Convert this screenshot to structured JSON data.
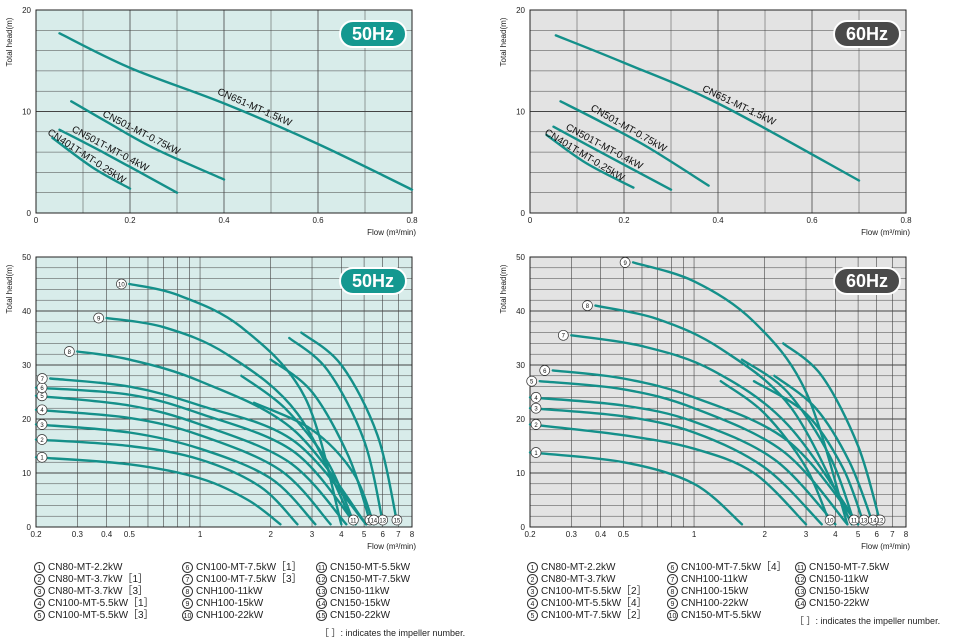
{
  "chart_data": [
    {
      "id": "top-50",
      "type": "line",
      "freq_badge": "50Hz",
      "badge_color": "#149890",
      "bg_color": "#d8ecea",
      "line_color": "#14908a",
      "xlabel": "Flow (m³/min)",
      "ylabel": "Total head(m)",
      "xscale": "linear",
      "xlim": [
        0,
        0.8
      ],
      "ylim": [
        0,
        20
      ],
      "xticks": [
        "0",
        "0.2",
        "0.4",
        "0.6",
        "0.8"
      ],
      "yticks": [
        "0",
        "10",
        "20"
      ],
      "series": [
        {
          "name": "CN651-MT-1.5kW",
          "x": [
            0.05,
            0.2,
            0.4,
            0.6,
            0.8
          ],
          "y": [
            17.7,
            14.3,
            10.8,
            6.8,
            2.3
          ]
        },
        {
          "name": "CN501-MT-0.75kW",
          "x": [
            0.075,
            0.15,
            0.25,
            0.4
          ],
          "y": [
            11.0,
            9.0,
            6.4,
            3.3
          ]
        },
        {
          "name": "CN501T-MT-0.4kW",
          "x": [
            0.05,
            0.15,
            0.3
          ],
          "y": [
            8.2,
            5.8,
            2.0
          ]
        },
        {
          "name": "CN401T-MT-0.25kW",
          "x": [
            0.035,
            0.12,
            0.2
          ],
          "y": [
            7.4,
            4.5,
            2.4
          ]
        }
      ]
    },
    {
      "id": "top-60",
      "type": "line",
      "freq_badge": "60Hz",
      "badge_color": "#4a4a4a",
      "bg_color": "#e3e3e3",
      "line_color": "#14908a",
      "xlabel": "Flow (m³/min)",
      "ylabel": "Total head(m)",
      "xscale": "linear",
      "xlim": [
        0,
        0.8
      ],
      "ylim": [
        0,
        20
      ],
      "xticks": [
        "0",
        "0.2",
        "0.4",
        "0.6",
        "0.8"
      ],
      "yticks": [
        "0",
        "10",
        "20"
      ],
      "series": [
        {
          "name": "CN651-MT-1.5kW",
          "x": [
            0.055,
            0.2,
            0.4,
            0.7
          ],
          "y": [
            17.5,
            14.8,
            10.8,
            3.2
          ]
        },
        {
          "name": "CN501-MT-0.75kW",
          "x": [
            0.065,
            0.15,
            0.25,
            0.38
          ],
          "y": [
            11.0,
            9.0,
            6.5,
            2.7
          ]
        },
        {
          "name": "CN501T-MT-0.4kW",
          "x": [
            0.05,
            0.15,
            0.3
          ],
          "y": [
            8.5,
            6.0,
            2.3
          ]
        },
        {
          "name": "CN401T-MT-0.25kW",
          "x": [
            0.035,
            0.12,
            0.22
          ],
          "y": [
            7.7,
            4.9,
            2.5
          ]
        }
      ]
    },
    {
      "id": "bottom-50",
      "type": "line",
      "freq_badge": "50Hz",
      "badge_color": "#149890",
      "bg_color": "#d8ecea",
      "line_color": "#14908a",
      "xlabel": "Flow (m³/min)",
      "ylabel": "Total head(m)",
      "xscale": "log",
      "xlim": [
        0.2,
        8
      ],
      "ylim": [
        0,
        50
      ],
      "xticks": [
        "0.2",
        "0.3",
        "0.4",
        "0.5",
        "1",
        "2",
        "3",
        "4",
        "5",
        "6",
        "7",
        "8"
      ],
      "xtick_values": [
        0.2,
        0.3,
        0.4,
        0.5,
        1,
        2,
        3,
        4,
        5,
        6,
        7,
        8
      ],
      "yticks": [
        "0",
        "10",
        "20",
        "30",
        "40",
        "50"
      ],
      "series": [
        {
          "name": "1",
          "x": [
            0.2,
            0.5,
            1,
            1.6,
            2.2
          ],
          "y": [
            12.9,
            11.6,
            9.0,
            5.0,
            0.5
          ]
        },
        {
          "name": "2",
          "x": [
            0.2,
            0.5,
            1,
            1.8,
            2.6
          ],
          "y": [
            16.2,
            15.0,
            12.5,
            7.5,
            0.5
          ]
        },
        {
          "name": "3",
          "x": [
            0.2,
            0.5,
            1,
            2,
            3.1
          ],
          "y": [
            19.0,
            17.5,
            14.5,
            9.0,
            0.5
          ]
        },
        {
          "name": "4",
          "x": [
            0.2,
            0.5,
            1,
            2.2,
            3.6
          ],
          "y": [
            21.7,
            20.2,
            17.0,
            10.5,
            0.5
          ]
        },
        {
          "name": "5",
          "x": [
            0.2,
            0.5,
            1,
            2.4,
            4.2
          ],
          "y": [
            24.3,
            22.5,
            19.0,
            12.0,
            0.5
          ]
        },
        {
          "name": "6",
          "x": [
            0.2,
            0.5,
            1,
            2.5,
            4.6
          ],
          "y": [
            25.8,
            24.5,
            21.0,
            14.0,
            0.5
          ]
        },
        {
          "name": "7",
          "x": [
            0.23,
            0.5,
            1,
            2.5,
            5.1
          ],
          "y": [
            27.5,
            26.0,
            22.5,
            16.0,
            0.5
          ]
        },
        {
          "name": "8",
          "x": [
            0.3,
            0.5,
            1,
            2.5,
            5.1
          ],
          "y": [
            32.5,
            31.0,
            27.0,
            18.0,
            0.5
          ]
        },
        {
          "name": "9",
          "x": [
            0.4,
            0.7,
            1.3,
            2.6,
            4.5
          ],
          "y": [
            38.7,
            37.0,
            32.0,
            21.0,
            0.5
          ]
        },
        {
          "name": "10",
          "x": [
            0.5,
            0.8,
            1.5,
            2.8,
            4.0
          ],
          "y": [
            45.0,
            43.0,
            37.0,
            24.0,
            0.5
          ]
        },
        {
          "name": "11",
          "x": [
            1.5,
            2.3,
            3.5,
            4.5
          ],
          "y": [
            28.0,
            22.0,
            12.0,
            1.0
          ]
        },
        {
          "name": "12",
          "x": [
            2.0,
            3.0,
            4.3,
            5.3
          ],
          "y": [
            31.0,
            25.0,
            13.0,
            1.0
          ]
        },
        {
          "name": "13",
          "x": [
            2.4,
            3.5,
            5.0,
            6.0
          ],
          "y": [
            35.0,
            29.0,
            16.0,
            1.0
          ]
        },
        {
          "name": "14",
          "x": [
            1.7,
            3.0,
            4.5,
            5.5
          ],
          "y": [
            23.0,
            18.0,
            10.0,
            0.5
          ]
        },
        {
          "name": "15",
          "x": [
            2.7,
            4.0,
            5.7,
            6.9
          ],
          "y": [
            36.0,
            30.0,
            17.0,
            1.0
          ]
        }
      ],
      "endpoint_labels": [
        "11",
        "12",
        "13",
        "14",
        "15"
      ]
    },
    {
      "id": "bottom-60",
      "type": "line",
      "freq_badge": "60Hz",
      "badge_color": "#4a4a4a",
      "bg_color": "#e3e3e3",
      "line_color": "#14908a",
      "xlabel": "Flow (m³/min)",
      "ylabel": "Total head(m)",
      "xscale": "log",
      "xlim": [
        0.2,
        8
      ],
      "ylim": [
        0,
        50
      ],
      "xticks": [
        "0.2",
        "0.3",
        "0.4",
        "0.5",
        "1",
        "2",
        "3",
        "4",
        "5",
        "6",
        "7",
        "8"
      ],
      "xtick_values": [
        0.2,
        0.3,
        0.4,
        0.5,
        1,
        2,
        3,
        4,
        5,
        6,
        7,
        8
      ],
      "yticks": [
        "0",
        "10",
        "20",
        "30",
        "40",
        "50"
      ],
      "series": [
        {
          "name": "1",
          "x": [
            0.2,
            0.5,
            1,
            1.6
          ],
          "y": [
            13.8,
            12.0,
            8.0,
            0.5
          ]
        },
        {
          "name": "2",
          "x": [
            0.2,
            0.5,
            1,
            1.8,
            3.0
          ],
          "y": [
            19.0,
            17.0,
            14.5,
            10.0,
            0.5
          ]
        },
        {
          "name": "3",
          "x": [
            0.2,
            0.5,
            1,
            2,
            3.5
          ],
          "y": [
            22.0,
            20.5,
            17.5,
            11.0,
            0.5
          ]
        },
        {
          "name": "4",
          "x": [
            0.2,
            0.5,
            1,
            2.2,
            4.0
          ],
          "y": [
            24.0,
            22.5,
            19.5,
            12.5,
            0.5
          ]
        },
        {
          "name": "5",
          "x": [
            0.22,
            0.5,
            1,
            2.4,
            4.5
          ],
          "y": [
            27.0,
            25.5,
            22.0,
            14.0,
            0.5
          ]
        },
        {
          "name": "6",
          "x": [
            0.25,
            0.5,
            1,
            2.5,
            5.0
          ],
          "y": [
            29.0,
            27.5,
            24.0,
            16.0,
            0.5
          ]
        },
        {
          "name": "7",
          "x": [
            0.3,
            0.6,
            1.2,
            2.5,
            5.0
          ],
          "y": [
            35.5,
            33.5,
            29.0,
            19.0,
            0.5
          ]
        },
        {
          "name": "8",
          "x": [
            0.38,
            0.7,
            1.3,
            2.6,
            4.7
          ],
          "y": [
            41.0,
            38.5,
            33.0,
            22.0,
            0.5
          ]
        },
        {
          "name": "9",
          "x": [
            0.55,
            1.0,
            1.8,
            3.0,
            4.5
          ],
          "y": [
            49.0,
            45.5,
            38.0,
            25.0,
            0.5
          ]
        },
        {
          "name": "10",
          "x": [
            1.3,
            2.0,
            3.0,
            3.8
          ],
          "y": [
            27.0,
            21.0,
            11.0,
            0.5
          ]
        },
        {
          "name": "11",
          "x": [
            1.6,
            2.5,
            3.8,
            4.8
          ],
          "y": [
            31.0,
            25.0,
            13.0,
            1.0
          ]
        },
        {
          "name": "12",
          "x": [
            2.4,
            3.5,
            5.0,
            6.2
          ],
          "y": [
            34.0,
            28.0,
            15.0,
            1.0
          ]
        },
        {
          "name": "13",
          "x": [
            1.8,
            3.0,
            4.3,
            5.3
          ],
          "y": [
            27.0,
            21.0,
            11.0,
            0.5
          ]
        },
        {
          "name": "14",
          "x": [
            2.2,
            3.3,
            4.6,
            5.8
          ],
          "y": [
            28.0,
            22.0,
            12.0,
            0.5
          ]
        }
      ],
      "endpoint_labels": [
        "10",
        "11",
        "12",
        "13",
        "14"
      ]
    }
  ],
  "legend_left": {
    "columns": [
      [
        {
          "num": "1",
          "text": "CN80-MT-2.2kW"
        },
        {
          "num": "2",
          "text": "CN80-MT-3.7kW［1］"
        },
        {
          "num": "3",
          "text": "CN80-MT-3.7kW［3］"
        },
        {
          "num": "4",
          "text": "CN100-MT-5.5kW［1］"
        },
        {
          "num": "5",
          "text": "CN100-MT-5.5kW［3］"
        }
      ],
      [
        {
          "num": "6",
          "text": "CN100-MT-7.5kW［1］"
        },
        {
          "num": "7",
          "text": "CN100-MT-7.5kW［3］"
        },
        {
          "num": "8",
          "text": "CNH100-11kW"
        },
        {
          "num": "9",
          "text": "CNH100-15kW"
        },
        {
          "num": "10",
          "text": "CNH100-22kW"
        }
      ],
      [
        {
          "num": "11",
          "text": "CN150-MT-5.5kW"
        },
        {
          "num": "12",
          "text": "CN150-MT-7.5kW"
        },
        {
          "num": "13",
          "text": "CN150-11kW"
        },
        {
          "num": "14",
          "text": "CN150-15kW"
        },
        {
          "num": "15",
          "text": "CN150-22kW"
        }
      ]
    ],
    "note": "［ ］: indicates the impeller number."
  },
  "legend_right": {
    "columns": [
      [
        {
          "num": "1",
          "text": "CN80-MT-2.2kW"
        },
        {
          "num": "2",
          "text": "CN80-MT-3.7kW"
        },
        {
          "num": "3",
          "text": "CN100-MT-5.5kW［2］"
        },
        {
          "num": "4",
          "text": "CN100-MT-5.5kW［4］"
        },
        {
          "num": "5",
          "text": "CN100-MT-7.5kW［2］"
        }
      ],
      [
        {
          "num": "6",
          "text": "CN100-MT-7.5kW［4］"
        },
        {
          "num": "7",
          "text": "CNH100-11kW"
        },
        {
          "num": "8",
          "text": "CNH100-15kW"
        },
        {
          "num": "9",
          "text": "CNH100-22kW"
        },
        {
          "num": "10",
          "text": "CN150-MT-5.5kW"
        }
      ],
      [
        {
          "num": "11",
          "text": "CN150-MT-7.5kW"
        },
        {
          "num": "12",
          "text": "CN150-11kW"
        },
        {
          "num": "13",
          "text": "CN150-15kW"
        },
        {
          "num": "14",
          "text": "CN150-22kW"
        }
      ]
    ],
    "note": "［ ］: indicates the impeller number."
  }
}
